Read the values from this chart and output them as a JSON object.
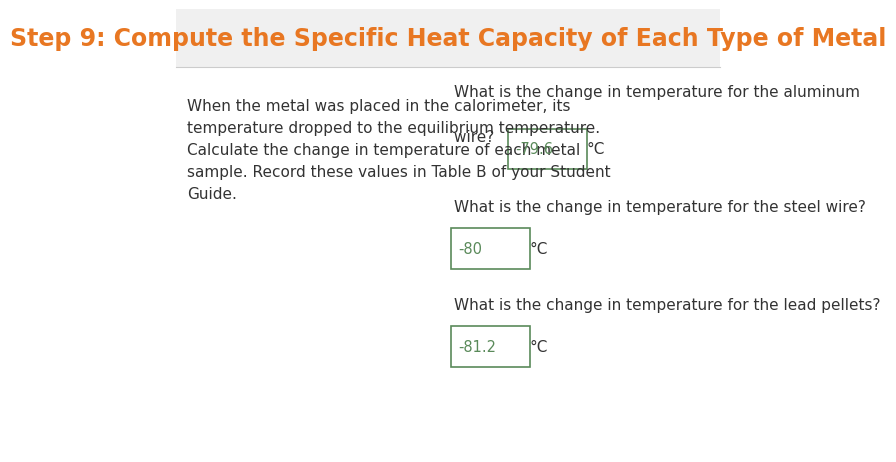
{
  "title": "Step 9: Compute the Specific Heat Capacity of Each Type of Metal",
  "title_color": "#E87722",
  "title_bg_color": "#F0F0F0",
  "body_bg_color": "#FFFFFF",
  "left_text": "When the metal was placed in the calorimeter, its\ntemperature dropped to the equilibrium temperature.\nCalculate the change in temperature of each metal\nsample. Record these values in Table B of your Student\nGuide.",
  "left_text_color": "#333333",
  "questions": [
    {
      "text_line1": "What is the change in temperature for the aluminum",
      "text_line2": "wire?",
      "answer": "-79.6",
      "unit": "°C",
      "two_line": true
    },
    {
      "text_line1": "What is the change in temperature for the steel wire?",
      "text_line2": "",
      "answer": "-80",
      "unit": "°C",
      "two_line": false
    },
    {
      "text_line1": "What is the change in temperature for the lead pellets?",
      "text_line2": "",
      "answer": "-81.2",
      "unit": "°C",
      "two_line": false
    }
  ],
  "answer_color": "#5A8A5A",
  "box_border_color": "#5A8A5A",
  "question_text_color": "#333333",
  "title_fontsize": 17,
  "body_fontsize": 11,
  "title_bar_height": 0.13
}
